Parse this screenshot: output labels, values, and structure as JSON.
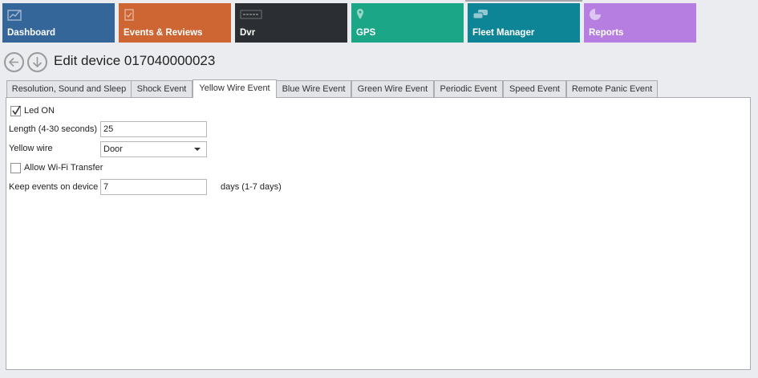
{
  "nav": [
    {
      "label": "Dashboard",
      "icon": "chart-line-icon",
      "color": "#346699"
    },
    {
      "label": "Events & Reviews",
      "icon": "clipboard-check-icon",
      "color": "#cd6633"
    },
    {
      "label": "Dvr",
      "icon": "merge-logo-icon",
      "color": "#2b2e33"
    },
    {
      "label": "GPS",
      "icon": "map-pin-icon",
      "color": "#1aa687"
    },
    {
      "label": "Fleet Manager",
      "icon": "cars-icon",
      "color": "#0e8597"
    },
    {
      "label": "Reports",
      "icon": "pie-chart-icon",
      "color": "#b57ee0"
    }
  ],
  "header": {
    "title": "Edit device 017040000023"
  },
  "tabs": [
    "Resolution, Sound and Sleep",
    "Shock Event",
    "Yellow Wire Event",
    "Blue Wire Event",
    "Green Wire Event",
    "Periodic Event",
    "Speed Event",
    "Remote Panic Event"
  ],
  "active_tab": "Yellow Wire Event",
  "form": {
    "led_on": {
      "label": "Led ON",
      "checked": true
    },
    "length": {
      "label": "Length (4-30 seconds)",
      "value": "25"
    },
    "yellow_wire": {
      "label": "Yellow wire",
      "value": "Door"
    },
    "wifi": {
      "label": "Allow Wi-Fi Transfer",
      "checked": false
    },
    "keep": {
      "label": "Keep events on device",
      "value": "7",
      "suffix": "days (1-7 days)"
    }
  }
}
